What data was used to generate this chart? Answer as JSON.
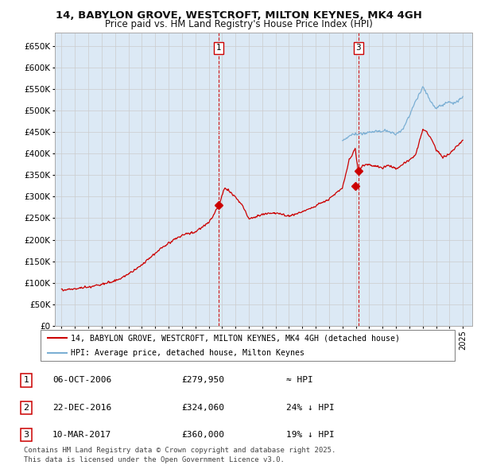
{
  "title": "14, BABYLON GROVE, WESTCROFT, MILTON KEYNES, MK4 4GH",
  "subtitle": "Price paid vs. HM Land Registry's House Price Index (HPI)",
  "ylim": [
    0,
    680000
  ],
  "yticks": [
    0,
    50000,
    100000,
    150000,
    200000,
    250000,
    300000,
    350000,
    400000,
    450000,
    500000,
    550000,
    600000,
    650000
  ],
  "ytick_labels": [
    "£0",
    "£50K",
    "£100K",
    "£150K",
    "£200K",
    "£250K",
    "£300K",
    "£350K",
    "£400K",
    "£450K",
    "£500K",
    "£550K",
    "£600K",
    "£650K"
  ],
  "xlim_start": 1994.5,
  "xlim_end": 2025.7,
  "sale_color": "#cc0000",
  "hpi_color": "#7bafd4",
  "grid_color": "#cccccc",
  "chart_bg_color": "#dce9f5",
  "background_color": "#ffffff",
  "transactions": [
    {
      "date_num": 2006.76,
      "price": 279950,
      "label": "1"
    },
    {
      "date_num": 2016.95,
      "price": 324060,
      "label": "2"
    },
    {
      "date_num": 2017.18,
      "price": 360000,
      "label": "3"
    }
  ],
  "vline_labels": [
    "1",
    "3"
  ],
  "vline_dates": [
    2006.76,
    2017.18
  ],
  "legend_sale": "14, BABYLON GROVE, WESTCROFT, MILTON KEYNES, MK4 4GH (detached house)",
  "legend_hpi": "HPI: Average price, detached house, Milton Keynes",
  "table_rows": [
    {
      "num": "1",
      "date": "06-OCT-2006",
      "price": "£279,950",
      "relation": "≈ HPI"
    },
    {
      "num": "2",
      "date": "22-DEC-2016",
      "price": "£324,060",
      "relation": "24% ↓ HPI"
    },
    {
      "num": "3",
      "date": "10-MAR-2017",
      "price": "£360,000",
      "relation": "19% ↓ HPI"
    }
  ],
  "footer": "Contains HM Land Registry data © Crown copyright and database right 2025.\nThis data is licensed under the Open Government Licence v3.0.",
  "title_fontsize": 9.5,
  "subtitle_fontsize": 8.5,
  "tick_fontsize": 7.5,
  "legend_fontsize": 7.2,
  "table_fontsize": 8,
  "footer_fontsize": 6.5
}
